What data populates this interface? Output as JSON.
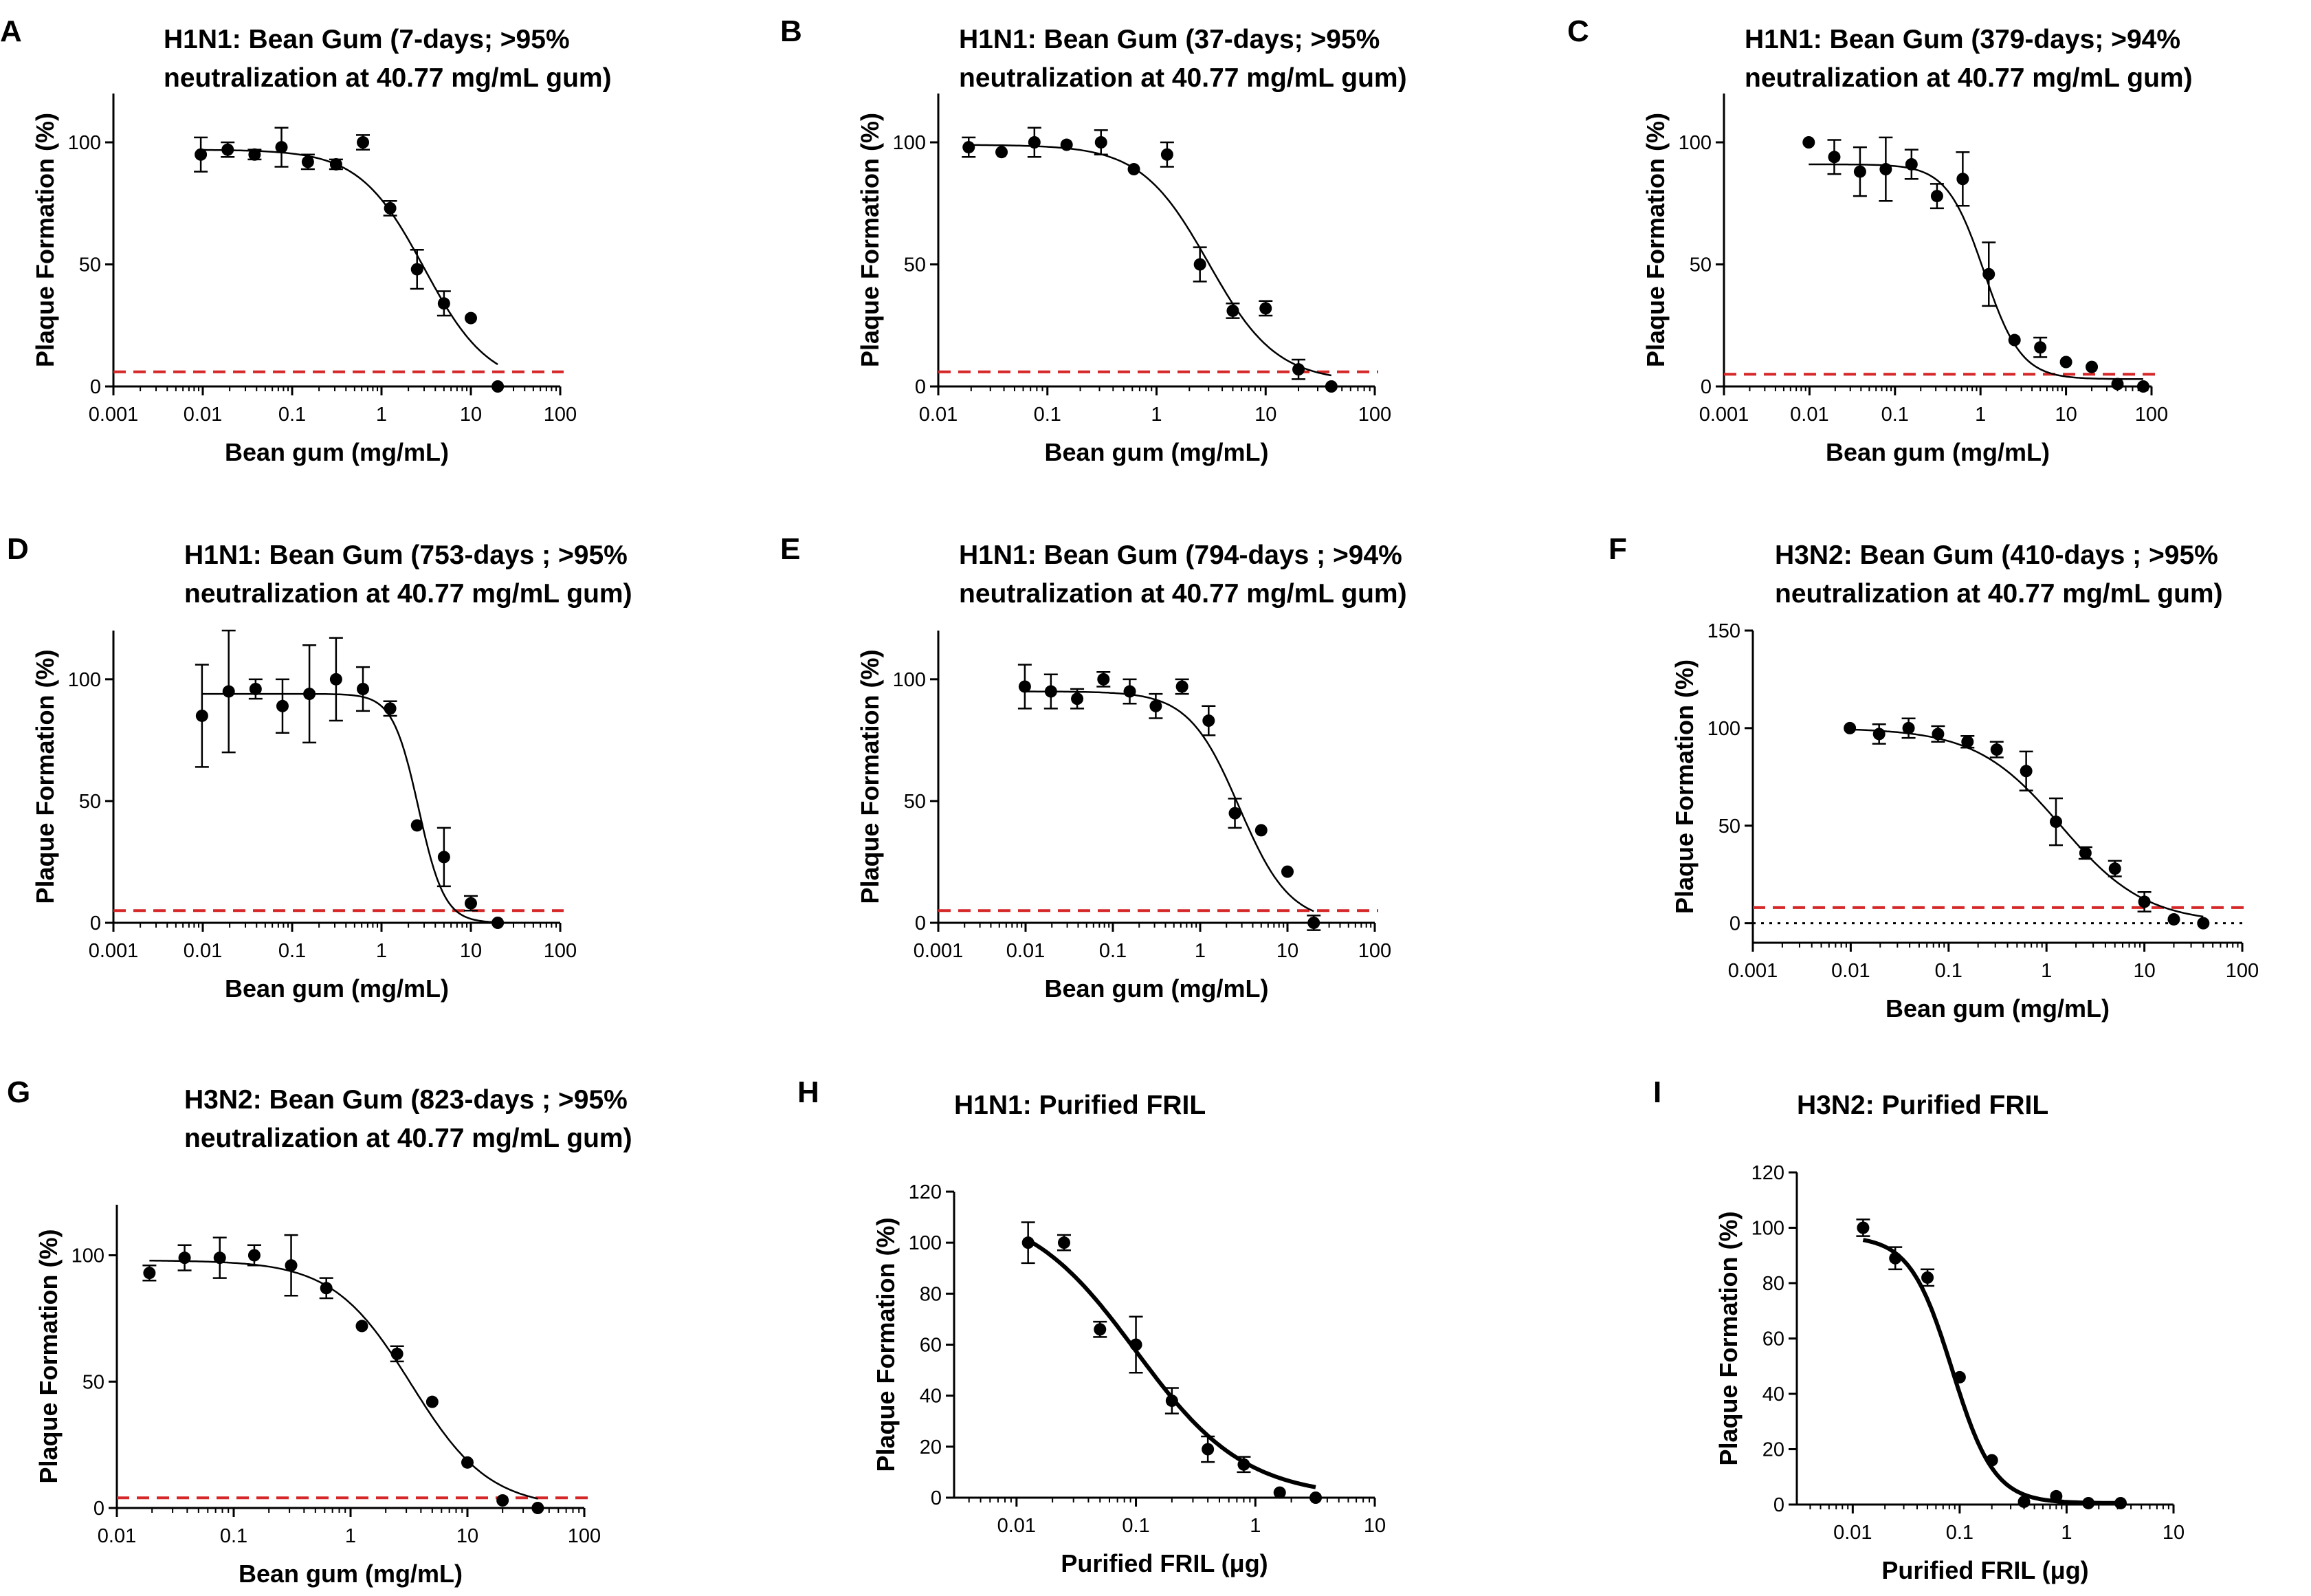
{
  "figure": {
    "background": "#ffffff",
    "colors": {
      "axis": "#000000",
      "fit": "#000000",
      "threshold": "#d62728",
      "zero_line": "#000000"
    }
  },
  "chart_data": [
    {
      "label": "A",
      "type": "scatter",
      "xscale": "log",
      "title": [
        "H1N1: Bean Gum (7-days; >95%",
        "neutralization at 40.77 mg/mL gum)"
      ],
      "xlabel": "Bean gum (mg/mL)",
      "ylabel": "Plaque Formation (%)",
      "xlim": [
        0.001,
        100
      ],
      "ylim": [
        0,
        120
      ],
      "xticks": [
        0.001,
        0.01,
        0.1,
        1,
        10,
        100
      ],
      "xticklabels": [
        "0.001",
        "0.01",
        "0.1",
        "1",
        "10",
        "100"
      ],
      "yticks": [
        0,
        50,
        100
      ],
      "yticklabels": [
        "0",
        "50",
        "100"
      ],
      "threshold": 6,
      "zero_line": false,
      "fit": {
        "top": 97,
        "bottom": 0,
        "ic50": 3.0,
        "hill": 1.2
      },
      "series": [
        {
          "name": "Plaque formation",
          "x": [
            0.0095,
            0.019,
            0.038,
            0.076,
            0.15,
            0.31,
            0.62,
            1.25,
            2.5,
            5,
            10,
            20
          ],
          "y": [
            95,
            97,
            95,
            98,
            92,
            91,
            100,
            73,
            48,
            34,
            28,
            0
          ],
          "err": [
            7,
            3,
            2,
            8,
            3,
            2,
            3,
            3,
            8,
            5,
            0,
            0
          ]
        }
      ]
    },
    {
      "label": "B",
      "type": "scatter",
      "xscale": "log",
      "title": [
        "H1N1: Bean Gum (37-days; >95%",
        "neutralization at 40.77 mg/mL gum)"
      ],
      "xlabel": "Bean gum (mg/mL)",
      "ylabel": "Plaque Formation (%)",
      "xlim": [
        0.01,
        100
      ],
      "ylim": [
        0,
        120
      ],
      "xticks": [
        0.01,
        0.1,
        1,
        10,
        100
      ],
      "xticklabels": [
        "0.01",
        "0.1",
        "1",
        "10",
        "100"
      ],
      "yticks": [
        0,
        50,
        100
      ],
      "yticklabels": [
        "0",
        "50",
        "100"
      ],
      "threshold": 6,
      "zero_line": false,
      "fit": {
        "top": 99,
        "bottom": 2,
        "ic50": 3.0,
        "hill": 1.4
      },
      "series": [
        {
          "name": "Plaque formation",
          "x": [
            0.019,
            0.038,
            0.076,
            0.15,
            0.31,
            0.62,
            1.25,
            2.5,
            5,
            10,
            20,
            40
          ],
          "y": [
            98,
            96,
            100,
            99,
            100,
            89,
            95,
            50,
            31,
            32,
            7,
            0
          ],
          "err": [
            4,
            0,
            6,
            0,
            5,
            0,
            5,
            7,
            3,
            3,
            4,
            0
          ]
        }
      ]
    },
    {
      "label": "C",
      "type": "scatter",
      "xscale": "log",
      "title": [
        "H1N1: Bean Gum (379-days; >94%",
        "neutralization at 40.77 mg/mL gum)"
      ],
      "xlabel": "Bean gum (mg/mL)",
      "ylabel": "Plaque Formation (%)",
      "xlim": [
        0.001,
        100
      ],
      "ylim": [
        0,
        120
      ],
      "xticks": [
        0.001,
        0.01,
        0.1,
        1,
        10,
        100
      ],
      "xticklabels": [
        "0.001",
        "0.01",
        "0.1",
        "1",
        "10",
        "100"
      ],
      "yticks": [
        0,
        50,
        100
      ],
      "yticklabels": [
        "0",
        "50",
        "100"
      ],
      "threshold": 5,
      "zero_line": false,
      "fit": {
        "top": 91,
        "bottom": 3,
        "ic50": 1.1,
        "hill": 2.0
      },
      "series": [
        {
          "name": "Plaque formation",
          "x": [
            0.0098,
            0.0195,
            0.039,
            0.078,
            0.156,
            0.31,
            0.62,
            1.25,
            2.5,
            5,
            10,
            20,
            40,
            80
          ],
          "y": [
            100,
            94,
            88,
            89,
            91,
            78,
            85,
            46,
            19,
            16,
            10,
            8,
            1,
            0
          ],
          "err": [
            0,
            7,
            10,
            13,
            6,
            5,
            11,
            13,
            0,
            4,
            0,
            0,
            0,
            0
          ]
        }
      ]
    },
    {
      "label": "D",
      "type": "scatter",
      "xscale": "log",
      "title": [
        "H1N1: Bean Gum (753-days ; >95%",
        "neutralization at 40.77 mg/mL gum)"
      ],
      "xlabel": "Bean gum (mg/mL)",
      "ylabel": "Plaque Formation (%)",
      "xlim": [
        0.001,
        100
      ],
      "ylim": [
        0,
        120
      ],
      "xticks": [
        0.001,
        0.01,
        0.1,
        1,
        10,
        100
      ],
      "xticklabels": [
        "0.001",
        "0.01",
        "0.1",
        "1",
        "10",
        "100"
      ],
      "yticks": [
        0,
        50,
        100
      ],
      "yticklabels": [
        "0",
        "50",
        "100"
      ],
      "threshold": 5,
      "zero_line": false,
      "fit": {
        "top": 94,
        "bottom": 0,
        "ic50": 2.6,
        "hill": 3.0
      },
      "series": [
        {
          "name": "Plaque formation",
          "x": [
            0.0098,
            0.0195,
            0.039,
            0.078,
            0.156,
            0.31,
            0.62,
            1.25,
            2.5,
            5,
            10,
            20
          ],
          "y": [
            85,
            95,
            96,
            89,
            94,
            100,
            96,
            88,
            40,
            27,
            8,
            0
          ],
          "err": [
            21,
            25,
            4,
            11,
            20,
            17,
            9,
            3,
            0,
            12,
            3,
            0
          ]
        }
      ]
    },
    {
      "label": "E",
      "type": "scatter",
      "xscale": "log",
      "title": [
        "H1N1: Bean Gum (794-days ; >94%",
        "neutralization at 40.77 mg/mL gum)"
      ],
      "xlabel": "Bean gum (mg/mL)",
      "ylabel": "Plaque Formation (%)",
      "xlim": [
        0.001,
        100
      ],
      "ylim": [
        0,
        120
      ],
      "xticks": [
        0.001,
        0.01,
        0.1,
        1,
        10,
        100
      ],
      "xticklabels": [
        "0.001",
        "0.01",
        "0.1",
        "1",
        "10",
        "100"
      ],
      "yticks": [
        0,
        50,
        100
      ],
      "yticklabels": [
        "0",
        "50",
        "100"
      ],
      "threshold": 5,
      "zero_line": false,
      "fit": {
        "top": 95,
        "bottom": 0,
        "ic50": 2.8,
        "hill": 1.5
      },
      "series": [
        {
          "name": "Plaque formation",
          "x": [
            0.0098,
            0.0195,
            0.039,
            0.078,
            0.156,
            0.31,
            0.62,
            1.25,
            2.5,
            5,
            10,
            20
          ],
          "y": [
            97,
            95,
            92,
            100,
            95,
            89,
            97,
            83,
            45,
            38,
            21,
            0
          ],
          "err": [
            9,
            7,
            4,
            3,
            5,
            5,
            3,
            6,
            6,
            0,
            0,
            3
          ]
        }
      ]
    },
    {
      "label": "F",
      "type": "scatter",
      "xscale": "log",
      "title": [
        "H3N2: Bean Gum (410-days ; >95%",
        "neutralization at 40.77 mg/mL gum)"
      ],
      "xlabel": "Bean gum (mg/mL)",
      "ylabel": "Plaque Formation (%)",
      "xlim": [
        0.001,
        100
      ],
      "ylim": [
        -10,
        150
      ],
      "xticks": [
        0.001,
        0.01,
        0.1,
        1,
        10,
        100
      ],
      "xticklabels": [
        "0.001",
        "0.01",
        "0.1",
        "1",
        "10",
        "100"
      ],
      "yticks": [
        0,
        50,
        100,
        150
      ],
      "yticklabels": [
        "0",
        "50",
        "100",
        "150"
      ],
      "threshold": 8,
      "zero_line": true,
      "fit": {
        "top": 100,
        "bottom": 0,
        "ic50": 1.4,
        "hill": 1.0
      },
      "series": [
        {
          "name": "Plaque formation",
          "x": [
            0.0098,
            0.0195,
            0.039,
            0.078,
            0.156,
            0.31,
            0.62,
            1.25,
            2.5,
            5,
            10,
            20,
            40
          ],
          "y": [
            100,
            97,
            100,
            97,
            93,
            89,
            78,
            52,
            36,
            28,
            11,
            2,
            0
          ],
          "err": [
            0,
            5,
            5,
            4,
            3,
            4,
            10,
            12,
            3,
            4,
            5,
            0,
            0
          ]
        }
      ]
    },
    {
      "label": "G",
      "type": "scatter",
      "xscale": "log",
      "title": [
        "H3N2: Bean Gum (823-days ; >95%",
        "neutralization at 40.77 mg/mL gum)"
      ],
      "xlabel": "Bean gum (mg/mL)",
      "ylabel": "Plaque Formation (%)",
      "xlim": [
        0.01,
        100
      ],
      "ylim": [
        0,
        120
      ],
      "xticks": [
        0.01,
        0.1,
        1,
        10,
        100
      ],
      "xticklabels": [
        "0.01",
        "0.1",
        "1",
        "10",
        "100"
      ],
      "yticks": [
        0,
        50,
        100
      ],
      "yticklabels": [
        "0",
        "50",
        "100"
      ],
      "threshold": 4,
      "zero_line": false,
      "fit": {
        "top": 98,
        "bottom": 0,
        "ic50": 3.3,
        "hill": 1.3
      },
      "series": [
        {
          "name": "Plaque formation",
          "x": [
            0.019,
            0.038,
            0.076,
            0.15,
            0.31,
            0.62,
            1.25,
            2.5,
            5,
            10,
            20,
            40
          ],
          "y": [
            93,
            99,
            99,
            100,
            96,
            87,
            72,
            61,
            42,
            18,
            3,
            0
          ],
          "err": [
            3,
            5,
            8,
            4,
            12,
            4,
            0,
            3,
            0,
            0,
            0,
            0
          ]
        }
      ]
    },
    {
      "label": "H",
      "type": "scatter",
      "xscale": "log",
      "title": [
        "H1N1: Purified FRIL"
      ],
      "xlabel": "Purified FRIL (μg)",
      "ylabel": "Plaque Formation (%)",
      "xlim": [
        0.003,
        10
      ],
      "ylim": [
        0,
        120
      ],
      "xticks": [
        0.01,
        0.1,
        1,
        10
      ],
      "xticklabels": [
        "0.01",
        "0.1",
        "1",
        "10"
      ],
      "yticks": [
        0,
        20,
        40,
        60,
        80,
        100,
        120
      ],
      "yticklabels": [
        "0",
        "20",
        "40",
        "60",
        "80",
        "100",
        "120"
      ],
      "threshold": null,
      "zero_line": false,
      "fit": {
        "top": 115,
        "bottom": 0,
        "ic50": 0.1,
        "hill": 0.95
      },
      "series": [
        {
          "name": "Plaque formation",
          "x": [
            0.0125,
            0.025,
            0.05,
            0.1,
            0.2,
            0.4,
            0.8,
            1.6,
            3.2
          ],
          "y": [
            100,
            100,
            66,
            60,
            38,
            19,
            13,
            2,
            0
          ],
          "err": [
            8,
            3,
            3,
            11,
            5,
            5,
            3,
            0,
            0
          ]
        }
      ]
    },
    {
      "label": "I",
      "type": "scatter",
      "xscale": "log",
      "title": [
        "H3N2: Purified FRIL"
      ],
      "xlabel": "Purified FRIL (μg)",
      "ylabel": "Plaque Formation (%)",
      "xlim": [
        0.003,
        10
      ],
      "ylim": [
        0,
        120
      ],
      "xticks": [
        0.01,
        0.1,
        1,
        10
      ],
      "xticklabels": [
        "0.01",
        "0.1",
        "1",
        "10"
      ],
      "yticks": [
        0,
        20,
        40,
        60,
        80,
        100,
        120
      ],
      "yticklabels": [
        "0",
        "20",
        "40",
        "60",
        "80",
        "100",
        "120"
      ],
      "threshold": null,
      "zero_line": false,
      "fit": {
        "top": 97,
        "bottom": 0.5,
        "ic50": 0.085,
        "hill": 2.2
      },
      "series": [
        {
          "name": "Plaque formation",
          "x": [
            0.0125,
            0.025,
            0.05,
            0.1,
            0.2,
            0.4,
            0.8,
            1.6,
            3.2
          ],
          "y": [
            100,
            89,
            82,
            46,
            16,
            1,
            3,
            0.5,
            0.5
          ],
          "err": [
            3,
            4,
            3,
            0,
            0,
            0,
            0,
            0,
            0
          ]
        }
      ]
    }
  ]
}
